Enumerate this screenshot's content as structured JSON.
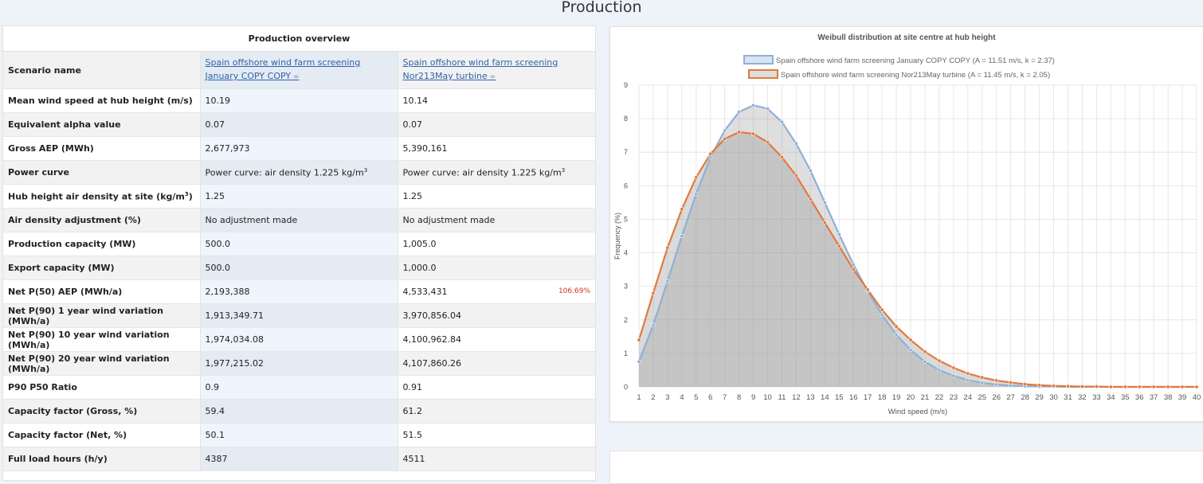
{
  "page": {
    "title": "Production"
  },
  "table": {
    "header": "Production overview",
    "rows": [
      {
        "label": "Scenario name",
        "c1": "Spain offshore wind farm screening January COPY COPY",
        "c2": "Spain offshore wind farm screening Nor213May turbine"
      },
      {
        "label": "Mean wind speed at hub height (m/s)",
        "c1": "10.19",
        "c2": "10.14"
      },
      {
        "label": "Equivalent alpha value",
        "c1": "0.07",
        "c2": "0.07"
      },
      {
        "label": "Gross AEP (MWh)",
        "c1": "2,677,973",
        "c2": "5,390,161"
      },
      {
        "label": "Power curve",
        "c1": "Power curve: air density 1.225 kg/m",
        "c2": "Power curve: air density 1.225 kg/m",
        "sup": "3"
      },
      {
        "label": "Hub height air density at site (kg/m",
        "label_sup": "3",
        "label_tail": ")",
        "c1": "1.25",
        "c2": "1.25"
      },
      {
        "label": "Air density adjustment (%)",
        "c1": "No adjustment made",
        "c2": "No adjustment made"
      },
      {
        "label": "Production capacity (MW)",
        "c1": "500.0",
        "c2": "1,005.0"
      },
      {
        "label": "Export capacity (MW)",
        "c1": "500.0",
        "c2": "1,000.0"
      },
      {
        "label": "Net P(50) AEP (MWh/a)",
        "c1": "2,193,388",
        "c2": "4,533,431",
        "badge": "106.69%"
      },
      {
        "label": "Net P(90) 1 year wind variation (MWh/a)",
        "c1": "1,913,349.71",
        "c2": "3,970,856.04"
      },
      {
        "label": "Net P(90) 10 year wind variation (MWh/a)",
        "c1": "1,974,034.08",
        "c2": "4,100,962.84"
      },
      {
        "label": "Net P(90) 20 year wind variation (MWh/a)",
        "c1": "1,977,215.02",
        "c2": "4,107,860.26"
      },
      {
        "label": "P90 P50 Ratio",
        "c1": "0.9",
        "c2": "0.91"
      },
      {
        "label": "Capacity factor (Gross, %)",
        "c1": "59.4",
        "c2": "61.2"
      },
      {
        "label": "Capacity factor (Net, %)",
        "c1": "50.1",
        "c2": "51.5"
      },
      {
        "label": "Full load hours (h/y)",
        "c1": "4387",
        "c2": "4511"
      }
    ],
    "link_icon": "link-icon"
  },
  "chart_data": {
    "type": "area",
    "title": "Weibull distribution at site centre at hub height",
    "xlabel": "Wind speed (m/s)",
    "ylabel": "Frequency (%)",
    "xlim": [
      1,
      40
    ],
    "ylim": [
      0,
      9
    ],
    "grid": true,
    "legend_placement": "top-center",
    "x": [
      1,
      2,
      3,
      4,
      5,
      6,
      7,
      8,
      9,
      10,
      11,
      12,
      13,
      14,
      15,
      16,
      17,
      18,
      19,
      20,
      21,
      22,
      23,
      24,
      25,
      26,
      27,
      28,
      29,
      30,
      31,
      32,
      33,
      34,
      35,
      36,
      37,
      38,
      39,
      40
    ],
    "series": [
      {
        "name": "Spain offshore wind farm screening January COPY COPY (A = 11.51 m/s, k = 2.37)",
        "color": "#8fb0d6",
        "values": [
          0.75,
          1.85,
          3.15,
          4.5,
          5.75,
          6.85,
          7.65,
          8.2,
          8.4,
          8.3,
          7.9,
          7.25,
          6.45,
          5.5,
          4.55,
          3.65,
          2.85,
          2.15,
          1.55,
          1.1,
          0.75,
          0.5,
          0.33,
          0.2,
          0.12,
          0.07,
          0.04,
          0.02,
          0.01,
          0.01,
          0.0,
          0.0,
          0.0,
          0.0,
          0.0,
          0.0,
          0.0,
          0.0,
          0.0,
          0.0
        ]
      },
      {
        "name": "Spain offshore wind farm screening Nor213May turbine (A = 11.45 m/s, k = 2.05)",
        "color": "#e07a3f",
        "values": [
          1.4,
          2.8,
          4.15,
          5.3,
          6.25,
          6.95,
          7.4,
          7.6,
          7.55,
          7.3,
          6.85,
          6.3,
          5.6,
          4.9,
          4.2,
          3.5,
          2.9,
          2.3,
          1.8,
          1.4,
          1.05,
          0.78,
          0.57,
          0.4,
          0.28,
          0.19,
          0.13,
          0.08,
          0.05,
          0.03,
          0.02,
          0.01,
          0.01,
          0.0,
          0.0,
          0.0,
          0.0,
          0.0,
          0.0,
          0.0
        ]
      }
    ],
    "yticks": [
      0,
      1,
      2,
      3,
      4,
      5,
      6,
      7,
      8,
      9
    ]
  }
}
